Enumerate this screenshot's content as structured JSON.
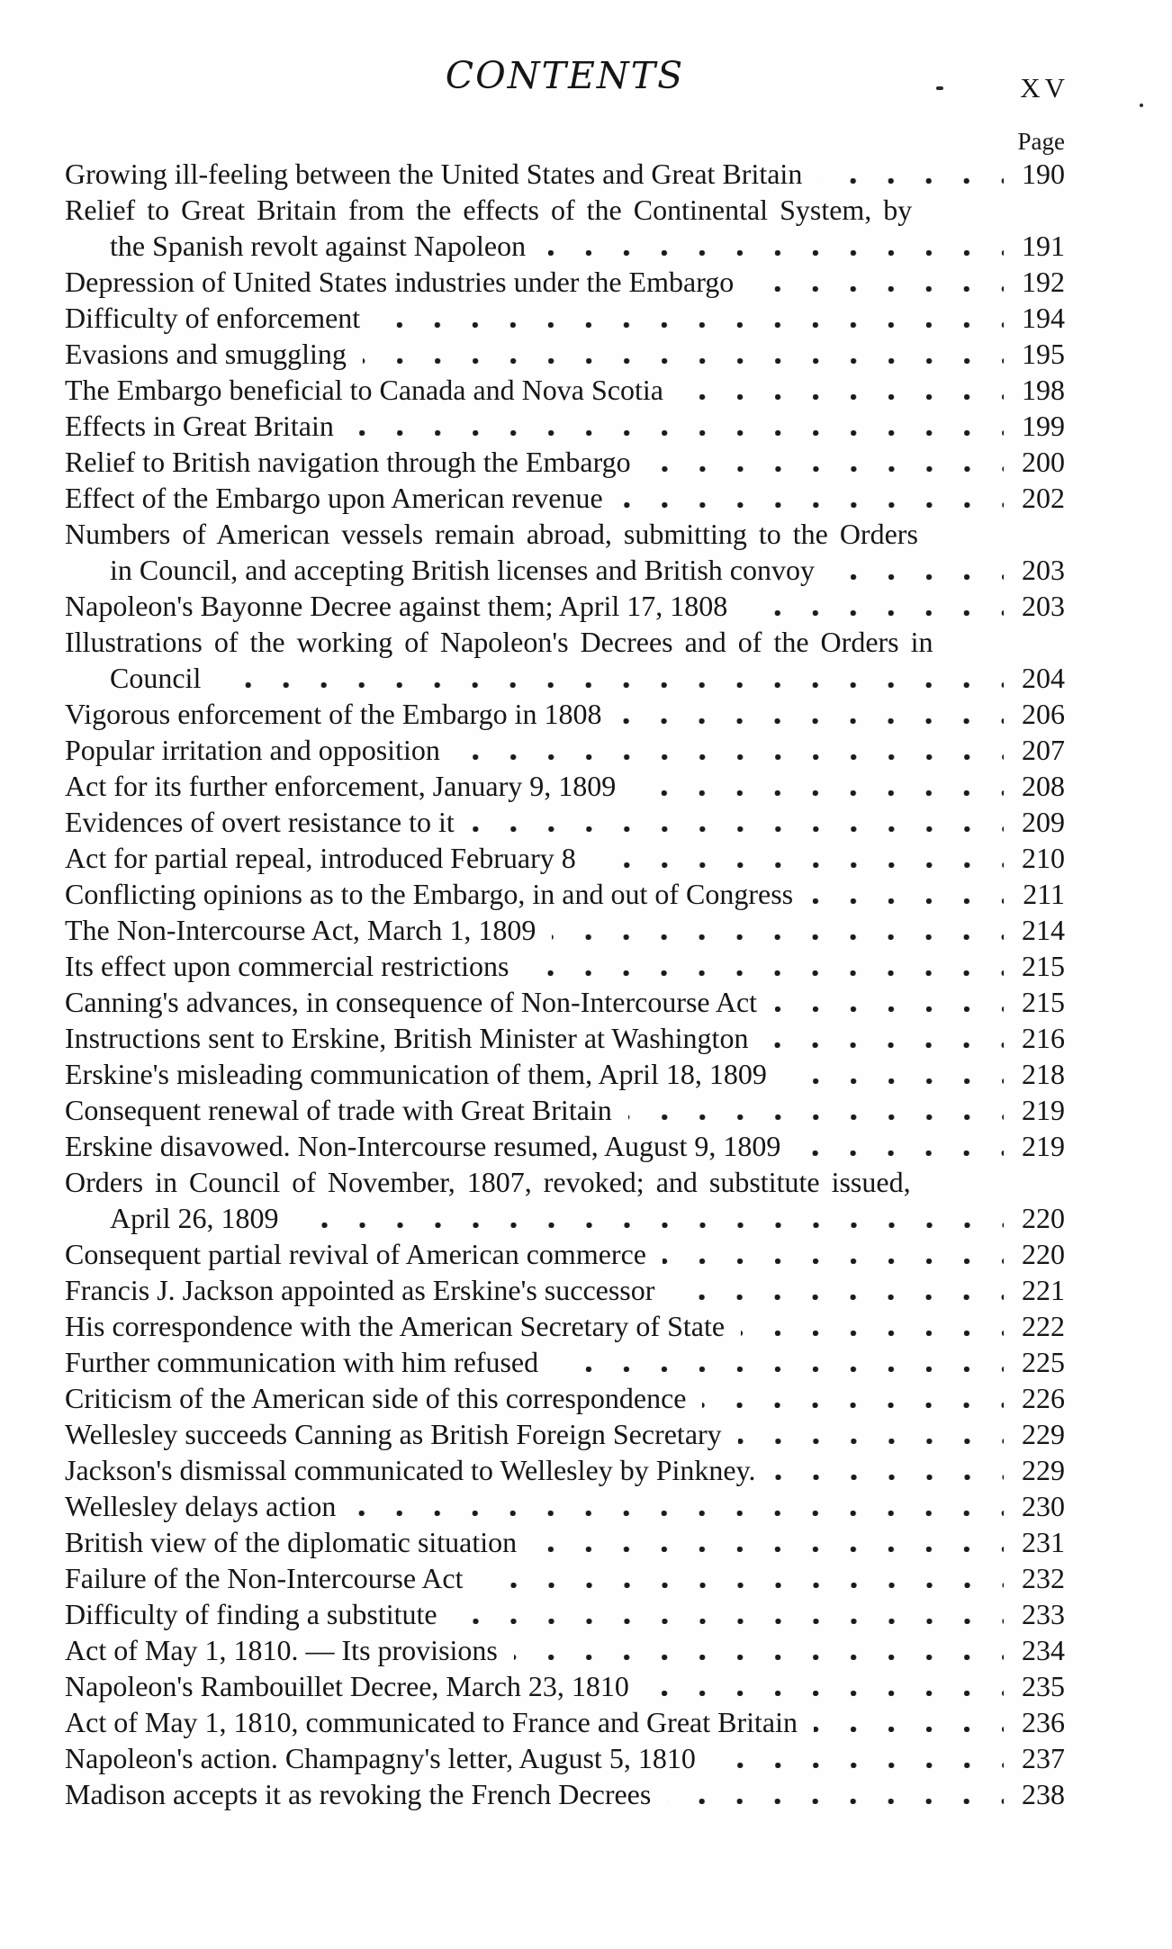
{
  "page": {
    "title": "CONTENTS",
    "folio": "XV",
    "column_header": "Page"
  },
  "colors": {
    "ink": "#161616",
    "paper": "#fefefe"
  },
  "toc": {
    "rows": [
      {
        "text": "Growing ill-feeling between the United States and Great Britain",
        "indent": false,
        "page": "190"
      },
      {
        "text": "Relief to Great Britain from the effects of the Continental System, by",
        "indent": false,
        "page": null
      },
      {
        "text": "the Spanish revolt against Napoleon",
        "indent": true,
        "page": "191"
      },
      {
        "text": "Depression of United States industries under the Embargo",
        "indent": false,
        "page": "192"
      },
      {
        "text": "Difficulty of enforcement",
        "indent": false,
        "page": "194"
      },
      {
        "text": "Evasions and smuggling",
        "indent": false,
        "page": "195"
      },
      {
        "text": "The Embargo beneficial to Canada and Nova Scotia",
        "indent": false,
        "page": "198"
      },
      {
        "text": "Effects in Great Britain",
        "indent": false,
        "page": "199"
      },
      {
        "text": "Relief to British navigation through the Embargo",
        "indent": false,
        "page": "200"
      },
      {
        "text": "Effect of the Embargo upon American revenue",
        "indent": false,
        "page": "202"
      },
      {
        "text": "Numbers of American vessels remain abroad, submitting to the Orders",
        "indent": false,
        "page": null
      },
      {
        "text": "in Council, and accepting British licenses and British convoy",
        "indent": true,
        "page": "203"
      },
      {
        "text": "Napoleon's Bayonne Decree against them; April 17, 1808",
        "indent": false,
        "page": "203"
      },
      {
        "text": "Illustrations of the working of Napoleon's Decrees and of the Orders in",
        "indent": false,
        "page": null
      },
      {
        "text": "Council",
        "indent": true,
        "page": "204"
      },
      {
        "text": "Vigorous enforcement of the Embargo in 1808",
        "indent": false,
        "page": "206"
      },
      {
        "text": "Popular irritation and opposition",
        "indent": false,
        "page": "207"
      },
      {
        "text": "Act for its further enforcement, January 9, 1809",
        "indent": false,
        "page": "208"
      },
      {
        "text": "Evidences of overt resistance to it",
        "indent": false,
        "page": "209"
      },
      {
        "text": "Act for partial repeal, introduced February 8",
        "indent": false,
        "page": "210"
      },
      {
        "text": "Conflicting opinions as to the Embargo, in and out of Congress",
        "indent": false,
        "page": "211"
      },
      {
        "text": "The Non-Intercourse Act, March 1, 1809",
        "indent": false,
        "page": "214"
      },
      {
        "text": "Its effect upon commercial restrictions",
        "indent": false,
        "page": "215"
      },
      {
        "text": "Canning's advances, in consequence of Non-Intercourse Act",
        "indent": false,
        "page": "215"
      },
      {
        "text": "Instructions sent to Erskine, British Minister at Washington",
        "indent": false,
        "page": "216"
      },
      {
        "text": "Erskine's misleading communication of them, April 18, 1809",
        "indent": false,
        "page": "218"
      },
      {
        "text": "Consequent renewal of trade with Great Britain",
        "indent": false,
        "page": "219"
      },
      {
        "text": "Erskine disavowed.  Non-Intercourse resumed, August 9, 1809",
        "indent": false,
        "page": "219"
      },
      {
        "text": "Orders in Council of November, 1807, revoked; and substitute issued,",
        "indent": false,
        "page": null
      },
      {
        "text": "April 26, 1809",
        "indent": true,
        "page": "220"
      },
      {
        "text": "Consequent partial revival of American commerce",
        "indent": false,
        "page": "220"
      },
      {
        "text": "Francis J. Jackson appointed as Erskine's successor",
        "indent": false,
        "page": "221"
      },
      {
        "text": "His correspondence with the American Secretary of State",
        "indent": false,
        "page": "222"
      },
      {
        "text": "Further communication with him refused",
        "indent": false,
        "page": "225"
      },
      {
        "text": "Criticism of the American side of this correspondence",
        "indent": false,
        "page": "226"
      },
      {
        "text": "Wellesley succeeds Canning as British Foreign Secretary",
        "indent": false,
        "page": "229"
      },
      {
        "text": "Jackson's dismissal communicated to Wellesley by Pinkney.",
        "indent": false,
        "page": "229"
      },
      {
        "text": "Wellesley delays action",
        "indent": false,
        "page": "230"
      },
      {
        "text": "British view of the diplomatic situation",
        "indent": false,
        "page": "231"
      },
      {
        "text": "Failure of the Non-Intercourse Act",
        "indent": false,
        "page": "232"
      },
      {
        "text": "Difficulty of finding a substitute",
        "indent": false,
        "page": "233"
      },
      {
        "text": "Act of May 1, 1810. — Its provisions",
        "indent": false,
        "page": "234"
      },
      {
        "text": "Napoleon's Rambouillet Decree, March 23, 1810",
        "indent": false,
        "page": "235"
      },
      {
        "text": "Act of May 1, 1810, communicated to France and Great Britain",
        "indent": false,
        "page": "236"
      },
      {
        "text": "Napoleon's action.  Champagny's letter, August 5, 1810",
        "indent": false,
        "page": "237"
      },
      {
        "text": "Madison accepts it as revoking the French Decrees",
        "indent": false,
        "page": "238"
      }
    ]
  }
}
